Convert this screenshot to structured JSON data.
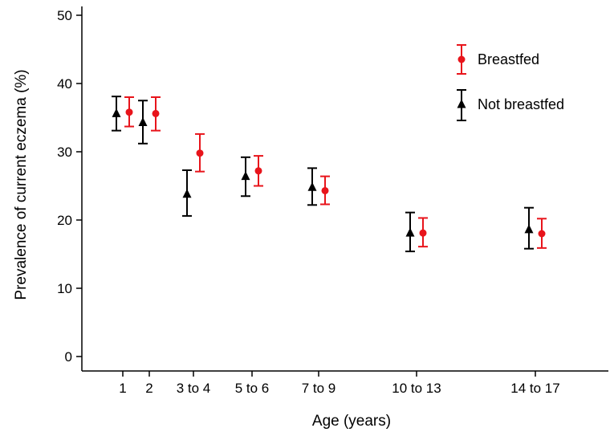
{
  "chart_data": {
    "type": "scatter",
    "title": "",
    "xlabel": "Age (years)",
    "ylabel": "Prevalence of current eczema (%)",
    "ylim": [
      0,
      50
    ],
    "yticks": [
      0,
      10,
      20,
      30,
      40,
      50
    ],
    "categories": [
      "1",
      "2",
      "3 to 4",
      "5 to 6",
      "7 to 9",
      "10 to 13",
      "14 to 17"
    ],
    "grid": false,
    "legend_position": "top-right",
    "series": [
      {
        "name": "Breastfed",
        "color": "#e8141b",
        "marker": "circle",
        "values": [
          35.8,
          35.6,
          29.8,
          27.2,
          24.3,
          18.1,
          18.0
        ],
        "lower": [
          33.7,
          33.1,
          27.1,
          25.0,
          22.3,
          16.1,
          15.9
        ],
        "upper": [
          38.0,
          38.0,
          32.6,
          29.4,
          26.4,
          20.3,
          20.2
        ]
      },
      {
        "name": "Not breastfed",
        "color": "#000000",
        "marker": "triangle",
        "values": [
          35.6,
          34.3,
          23.8,
          26.4,
          24.8,
          18.1,
          18.6
        ],
        "lower": [
          33.1,
          31.2,
          20.6,
          23.5,
          22.2,
          15.4,
          15.8
        ],
        "upper": [
          38.1,
          37.5,
          27.3,
          29.2,
          27.6,
          21.1,
          21.8
        ]
      }
    ]
  }
}
